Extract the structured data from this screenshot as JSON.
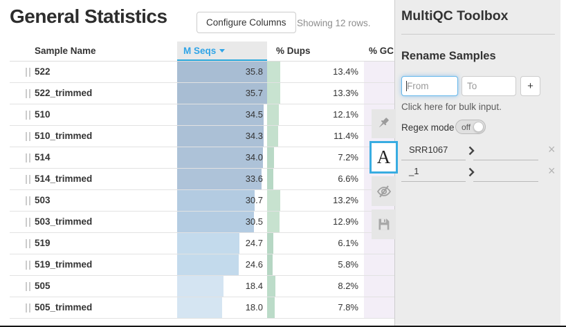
{
  "header": {
    "title": "General Statistics",
    "configure_button": "Configure Columns",
    "showing": "Showing 12 rows."
  },
  "table": {
    "columns": [
      "Sample Name",
      "M Seqs",
      "% Dups",
      "% GC"
    ],
    "sorted_column": "M Seqs",
    "sort_direction": "desc",
    "max_mseqs": 35.8,
    "max_dups": 13.4,
    "rows": [
      {
        "sample": "522",
        "mseqs": 35.8,
        "mseqs_label": "35.8",
        "dups": 13.4,
        "dups_label": "13.4%",
        "mseqs_color": "#a8bdd3",
        "dups_color": "#c8e3d0"
      },
      {
        "sample": "522_trimmed",
        "mseqs": 35.7,
        "mseqs_label": "35.7",
        "dups": 13.3,
        "dups_label": "13.3%",
        "mseqs_color": "#a8bdd3",
        "dups_color": "#c8e3d0"
      },
      {
        "sample": "510",
        "mseqs": 34.5,
        "mseqs_label": "34.5",
        "dups": 12.1,
        "dups_label": "12.1%",
        "mseqs_color": "#abc0d6",
        "dups_color": "#c6e1ce"
      },
      {
        "sample": "510_trimmed",
        "mseqs": 34.3,
        "mseqs_label": "34.3",
        "dups": 11.4,
        "dups_label": "11.4%",
        "mseqs_color": "#abc0d6",
        "dups_color": "#c4e0cd"
      },
      {
        "sample": "514",
        "mseqs": 34.0,
        "mseqs_label": "34.0",
        "dups": 7.2,
        "dups_label": "7.2%",
        "mseqs_color": "#adc2d8",
        "dups_color": "#b9d9c6"
      },
      {
        "sample": "514_trimmed",
        "mseqs": 33.6,
        "mseqs_label": "33.6",
        "dups": 6.6,
        "dups_label": "6.6%",
        "mseqs_color": "#aec3d9",
        "dups_color": "#b7d8c5"
      },
      {
        "sample": "503",
        "mseqs": 30.7,
        "mseqs_label": "30.7",
        "dups": 13.2,
        "dups_label": "13.2%",
        "mseqs_color": "#b3cbe1",
        "dups_color": "#c7e2cf"
      },
      {
        "sample": "503_trimmed",
        "mseqs": 30.5,
        "mseqs_label": "30.5",
        "dups": 12.9,
        "dups_label": "12.9%",
        "mseqs_color": "#b4cce2",
        "dups_color": "#c7e2cf"
      },
      {
        "sample": "519",
        "mseqs": 24.7,
        "mseqs_label": "24.7",
        "dups": 6.1,
        "dups_label": "6.1%",
        "mseqs_color": "#c3daec",
        "dups_color": "#b6d7c4"
      },
      {
        "sample": "519_trimmed",
        "mseqs": 24.6,
        "mseqs_label": "24.6",
        "dups": 5.8,
        "dups_label": "5.8%",
        "mseqs_color": "#c3daec",
        "dups_color": "#b5d6c3"
      },
      {
        "sample": "505",
        "mseqs": 18.4,
        "mseqs_label": "18.4",
        "dups": 8.2,
        "dups_label": "8.2%",
        "mseqs_color": "#d4e4f2",
        "dups_color": "#bcdcc9"
      },
      {
        "sample": "505_trimmed",
        "mseqs": 18.0,
        "mseqs_label": "18.0",
        "dups": 7.8,
        "dups_label": "7.8%",
        "mseqs_color": "#d5e5f2",
        "dups_color": "#bbdbc8"
      }
    ]
  },
  "toolbox": {
    "title": "MultiQC Toolbox",
    "tabs": [
      {
        "name": "pin",
        "icon": "pushpin-icon",
        "active": false
      },
      {
        "name": "rename",
        "icon": "letter-a-icon",
        "label": "A",
        "active": true
      },
      {
        "name": "hide-samples",
        "icon": "eye-slash-icon",
        "active": false
      },
      {
        "name": "save",
        "icon": "save-icon",
        "active": false
      }
    ],
    "rename": {
      "heading": "Rename Samples",
      "from_placeholder": "From",
      "to_placeholder": "To",
      "add_button": "+",
      "bulk_link": "Click here for bulk input.",
      "regex_label": "Regex mode",
      "regex_state": "off",
      "entries": [
        {
          "from": "SRR1067",
          "to": ""
        },
        {
          "from": "_1",
          "to": ""
        }
      ]
    }
  },
  "colors": {
    "accent_blue": "#2fa4e7",
    "header_underline": "#29a8dc",
    "header_cell_bg": "#e9e9e9",
    "panel_bg": "#ececec",
    "gc_cell_bg": "#f3eef7",
    "active_tab_border": "#38ace1",
    "focused_input_border": "#63b6ea"
  }
}
